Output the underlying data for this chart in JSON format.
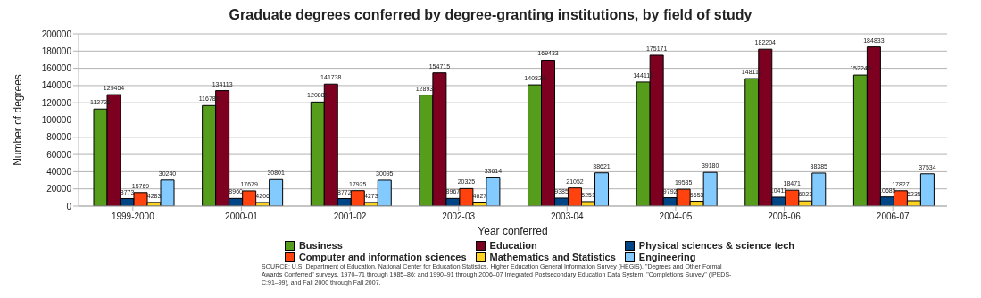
{
  "chart_data": {
    "type": "bar",
    "title": "Graduate degrees conferred by degree-granting institutions, by field of study",
    "xlabel": "Year conferred",
    "ylabel": "Number of degrees",
    "categories": [
      "1999-2000",
      "2000-01",
      "2001-02",
      "2002-03",
      "2003-04",
      "2004-05",
      "2005-06",
      "2006-07"
    ],
    "series": [
      {
        "name": "Business",
        "color": "#579d1c",
        "values": [
          112725,
          116782,
          120881,
          128937,
          140823,
          144115,
          148117,
          152240
        ]
      },
      {
        "name": "Education",
        "color": "#7e0021",
        "values": [
          129454,
          134113,
          141738,
          154715,
          169433,
          175171,
          182204,
          184833
        ]
      },
      {
        "name": "Physical sciences & science tech",
        "color": "#004586",
        "values": [
          8773,
          8960,
          8772,
          8967,
          9385,
          9792,
          10411,
          10685
        ]
      },
      {
        "name": "Computer and information sciences",
        "color": "#ff420e",
        "values": [
          15769,
          17679,
          17925,
          20325,
          21052,
          19535,
          18471,
          17827
        ]
      },
      {
        "name": "Mathematics and Statistics",
        "color": "#ffd320",
        "values": [
          4283,
          4206,
          4273,
          4627,
          5251,
          5653,
          6023,
          6235
        ]
      },
      {
        "name": "Engineering",
        "color": "#83caff",
        "values": [
          30240,
          30801,
          30095,
          33614,
          38621,
          39180,
          38385,
          37534
        ]
      }
    ],
    "ylim": [
      0,
      200000
    ],
    "yticks": [
      0,
      20000,
      40000,
      60000,
      80000,
      100000,
      120000,
      140000,
      160000,
      180000,
      200000
    ],
    "grid": "y",
    "legend": "bottom",
    "data_labels": true,
    "annotations": [
      "SOURCE: U.S. Department of Education, National Center for Education Statistics, Higher Education General Information Survey (HEGIS), \"Degrees and Other Formal Awards Conferred\" surveys, 1970–71 through 1985–86; and 1990–91 through 2006–07 Integrated Postsecondary Education Data System, \"Completions Survey\" (IPEDS-C:91–99), and Fall 2000 through Fall 2007."
    ]
  }
}
